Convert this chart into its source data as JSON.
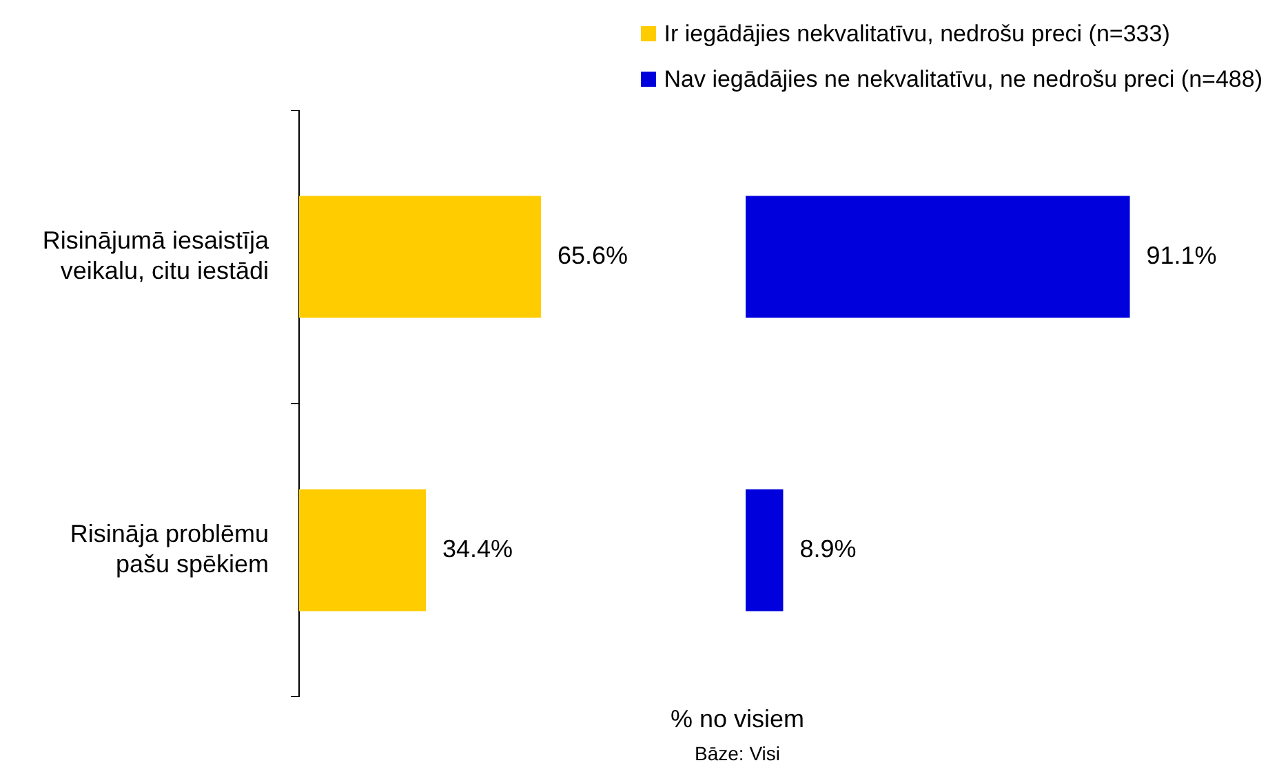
{
  "chart_data": [
    {
      "type": "bar",
      "orientation": "horizontal",
      "categories": [
        "Risinājumā iesaistīja veikalu, citu iestādi",
        "Risināja problēmu pašu spēkiem"
      ],
      "series": [
        {
          "name": "Ir iegādājies nekvalitatīvu, nedrošu preci (n=333)",
          "color": "#ffcc00",
          "values": [
            65.6,
            34.4
          ],
          "value_labels": [
            "65.6%",
            "34.4%"
          ]
        }
      ],
      "tick_labels": "y",
      "legend": "top right",
      "xlabel": "% no visiem",
      "annotations": [
        "Bāze: Visi"
      ]
    },
    {
      "type": "bar",
      "orientation": "horizontal",
      "categories": [
        null,
        null
      ],
      "series": [
        {
          "name": "Nav iegādājies ne nekvalitatīvu, ne nedrošu preci (n=488)",
          "color": "#0000dd",
          "values": [
            91.1,
            8.9
          ],
          "value_labels": [
            "91.1%",
            "8.9%"
          ]
        }
      ],
      "tick_labels": false,
      "legend": "top right"
    }
  ]
}
